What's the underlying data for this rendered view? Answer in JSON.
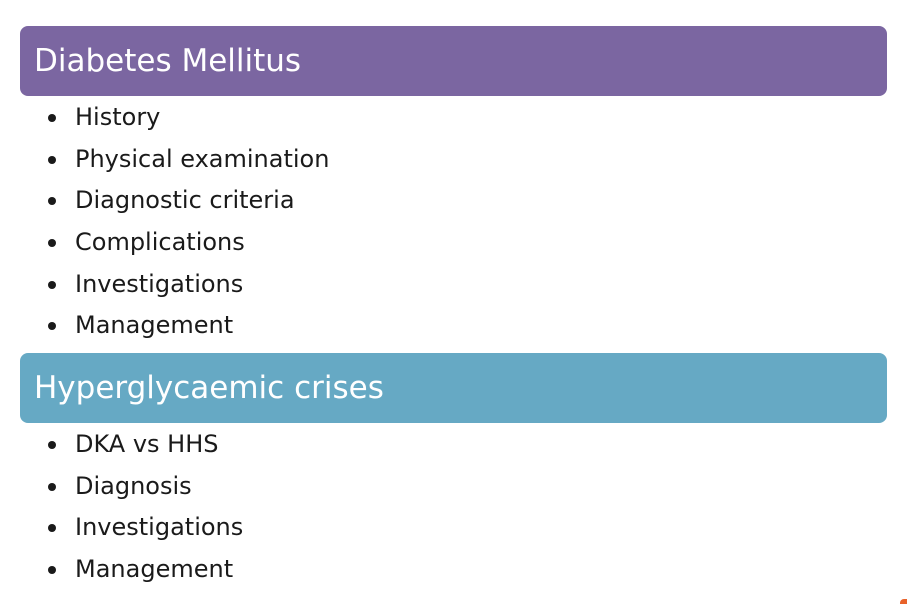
{
  "colors": {
    "section_1_header": "#7b66a1",
    "section_2_header": "#66a9c4",
    "bullet_text": "#1a1a1a",
    "background": "#ffffff",
    "corner_mark": "#e8622a"
  },
  "sections": [
    {
      "title": "Diabetes Mellitus",
      "items": [
        "History",
        "Physical examination",
        "Diagnostic criteria",
        "Complications",
        "Investigations",
        "Management"
      ]
    },
    {
      "title": "Hyperglycaemic crises",
      "items": [
        "DKA vs HHS",
        "Diagnosis",
        "Investigations",
        "Management"
      ]
    }
  ]
}
